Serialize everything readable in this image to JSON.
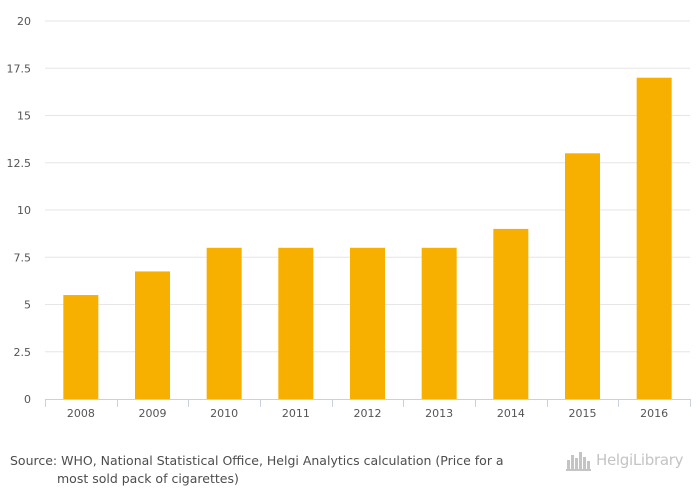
{
  "chart_data": {
    "type": "bar",
    "categories": [
      "2008",
      "2009",
      "2010",
      "2011",
      "2012",
      "2013",
      "2014",
      "2015",
      "2016"
    ],
    "values": [
      5.5,
      6.75,
      8,
      8,
      8,
      8,
      9,
      13,
      17
    ],
    "ylim": [
      0,
      20
    ],
    "yticks": [
      "0",
      "2.5",
      "5",
      "7.5",
      "10",
      "12.5",
      "15",
      "17.5",
      "20"
    ],
    "grid": true,
    "bar_color": "#f8b000"
  },
  "source": {
    "line1": "Source: WHO, National Statistical Office, Helgi Analytics calculation (Price for a",
    "line2": "most sold pack of cigarettes)"
  },
  "logo": {
    "text": "HelgiLibrary",
    "color": "#c4c4c4"
  }
}
